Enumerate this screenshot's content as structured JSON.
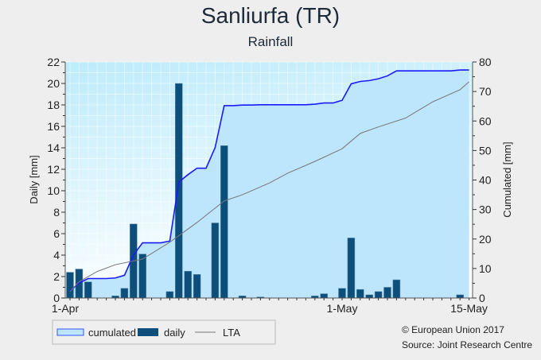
{
  "chart_data": {
    "type": "bar",
    "title": "Sanliurfa (TR)",
    "subtitle": "Rainfall",
    "ylabel": "Daily [mm]",
    "y2label": "Cumulated [mm]",
    "ylim": [
      0,
      22
    ],
    "y2lim": [
      0,
      80
    ],
    "yticks": [
      "0",
      "2",
      "4",
      "6",
      "8",
      "10",
      "12",
      "14",
      "16",
      "18",
      "20",
      "22"
    ],
    "y2ticks": [
      "0",
      "10",
      "20",
      "30",
      "40",
      "50",
      "60",
      "70",
      "80"
    ],
    "xticks": [
      "1-Apr",
      "1-May",
      "15-May"
    ],
    "xrange": [
      "1-Apr",
      "15-May"
    ],
    "grid": true,
    "legend_position": "bottom-left",
    "dates": [
      "1-Apr",
      "2-Apr",
      "3-Apr",
      "4-Apr",
      "5-Apr",
      "6-Apr",
      "7-Apr",
      "8-Apr",
      "9-Apr",
      "10-Apr",
      "11-Apr",
      "12-Apr",
      "13-Apr",
      "14-Apr",
      "15-Apr",
      "16-Apr",
      "17-Apr",
      "18-Apr",
      "19-Apr",
      "20-Apr",
      "21-Apr",
      "22-Apr",
      "23-Apr",
      "24-Apr",
      "25-Apr",
      "26-Apr",
      "27-Apr",
      "28-Apr",
      "29-Apr",
      "30-Apr",
      "1-May",
      "2-May",
      "3-May",
      "4-May",
      "5-May",
      "6-May",
      "7-May",
      "8-May",
      "9-May",
      "10-May",
      "11-May",
      "12-May",
      "13-May",
      "14-May",
      "15-May"
    ],
    "series": [
      {
        "name": "daily",
        "type": "bar",
        "axis": "left",
        "color": "#0d4f7a",
        "values": [
          2.4,
          2.7,
          1.5,
          0,
          0,
          0.2,
          0.9,
          6.9,
          4.1,
          0,
          0,
          0.6,
          20.0,
          2.5,
          2.2,
          0,
          7.0,
          14.2,
          0,
          0.2,
          0,
          0.1,
          0,
          0,
          0,
          0,
          0,
          0.2,
          0.4,
          0,
          0.9,
          5.6,
          0.8,
          0.3,
          0.6,
          1.0,
          1.7,
          0,
          0,
          0,
          0,
          0,
          0,
          0.3,
          0
        ]
      },
      {
        "name": "cumulated",
        "type": "area",
        "axis": "right",
        "color": "#1a1aff",
        "fill": "#bde5fb",
        "values": [
          2.4,
          5.1,
          6.6,
          6.6,
          6.6,
          6.8,
          7.7,
          14.6,
          18.7,
          18.7,
          18.7,
          19.3,
          39.3,
          41.8,
          44.0,
          44.0,
          51.0,
          65.2,
          65.2,
          65.4,
          65.4,
          65.5,
          65.5,
          65.5,
          65.5,
          65.5,
          65.5,
          65.7,
          66.1,
          66.1,
          67.0,
          72.6,
          73.4,
          73.7,
          74.3,
          75.3,
          77.0,
          77.0,
          77.0,
          77.0,
          77.0,
          77.0,
          77.0,
          77.3,
          77.3
        ]
      },
      {
        "name": "LTA",
        "type": "line",
        "axis": "right",
        "color": "#777777",
        "points": [
          [
            "1-Apr",
            2.2
          ],
          [
            "2-Apr",
            5.5
          ],
          [
            "4-Apr",
            9.0
          ],
          [
            "6-Apr",
            11.3
          ],
          [
            "9-Apr",
            13.2
          ],
          [
            "12-Apr",
            18.9
          ],
          [
            "15-Apr",
            25.6
          ],
          [
            "18-Apr",
            32.9
          ],
          [
            "20-Apr",
            35.0
          ],
          [
            "23-Apr",
            39.0
          ],
          [
            "25-Apr",
            42.3
          ],
          [
            "28-Apr",
            46.3
          ],
          [
            "1-May",
            50.6
          ],
          [
            "3-May",
            55.8
          ],
          [
            "5-May",
            58.0
          ],
          [
            "8-May",
            61.0
          ],
          [
            "11-May",
            66.5
          ],
          [
            "14-May",
            70.6
          ],
          [
            "15-May",
            73.3
          ]
        ]
      }
    ]
  },
  "legend": {
    "cumulated": "cumulated",
    "daily": "daily",
    "lta": "LTA"
  },
  "credits": {
    "copyright": "© European Union 2017",
    "source": "Source: Joint Research Centre"
  }
}
